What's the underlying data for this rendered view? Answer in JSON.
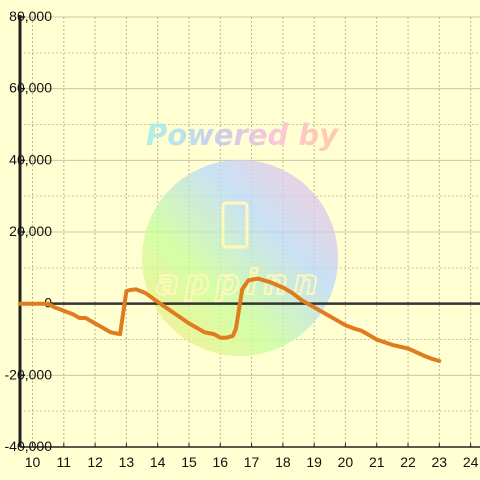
{
  "chart_data": {
    "type": "line",
    "title": "",
    "xlabel": "",
    "ylabel": "",
    "xlim": [
      9.6,
      24.3
    ],
    "ylim": [
      -40000,
      80000
    ],
    "x_ticks": [
      10,
      11,
      12,
      13,
      14,
      15,
      16,
      17,
      18,
      19,
      20,
      21,
      22,
      23,
      24
    ],
    "x_tick_labels": [
      "10",
      "11",
      "12",
      "13",
      "14",
      "15",
      "16",
      "17",
      "18",
      "19",
      "20",
      "21",
      "22",
      "23",
      "24"
    ],
    "y_ticks": [
      80000,
      60000,
      40000,
      20000,
      0,
      -20000,
      -40000
    ],
    "y_tick_labels": [
      "80,000",
      "60,000",
      "40,000",
      "20,000",
      "0",
      "-20,000",
      "-40,000"
    ],
    "grid": true,
    "series": [
      {
        "color": "#e07c1e",
        "x": [
          9.6,
          10.5,
          10.7,
          11.0,
          11.3,
          11.5,
          11.7,
          12.0,
          12.5,
          12.8,
          13.0,
          13.1,
          13.3,
          13.6,
          14.0,
          14.5,
          15.0,
          15.5,
          15.8,
          16.0,
          16.2,
          16.4,
          16.5,
          16.7,
          16.9,
          17.2,
          17.6,
          18.0,
          18.3,
          18.6,
          19.0,
          19.5,
          20.0,
          20.3,
          20.5,
          21.0,
          21.5,
          22.0,
          22.5,
          22.8,
          23.0
        ],
        "y": [
          0,
          0,
          -1000,
          -2000,
          -3000,
          -4000,
          -4000,
          -5500,
          -8000,
          -8500,
          3500,
          3800,
          4000,
          3000,
          500,
          -2500,
          -5500,
          -8000,
          -8500,
          -9500,
          -9500,
          -9000,
          -7000,
          4000,
          6500,
          7000,
          6000,
          4500,
          3000,
          1000,
          -1000,
          -3500,
          -6000,
          -7000,
          -7500,
          -10000,
          -11500,
          -12500,
          -14500,
          -15500,
          -16000
        ]
      }
    ],
    "watermark": {
      "text": "Powered by",
      "logo_text": "appinn"
    }
  }
}
